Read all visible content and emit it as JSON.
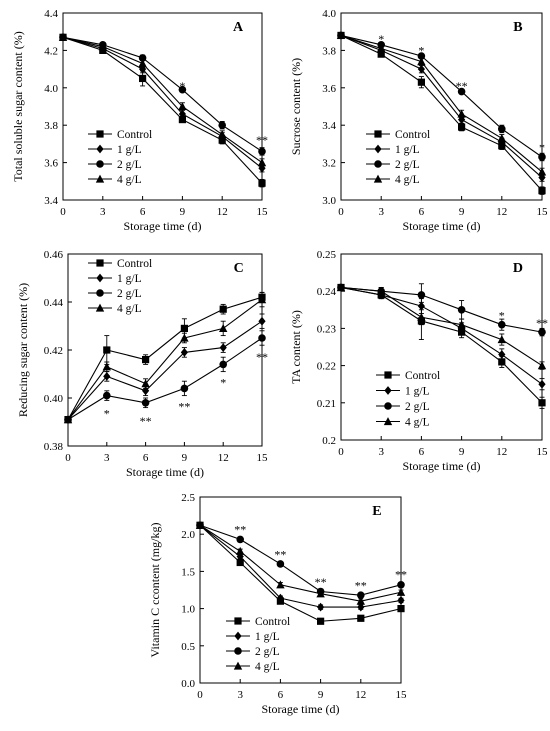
{
  "chart_data": [
    {
      "type": "line",
      "panel": "A",
      "title": "",
      "xlabel": "Storage time (d)",
      "ylabel": "Total soluble sugar content (%)",
      "x": [
        0,
        3,
        6,
        9,
        12,
        15
      ],
      "xlim": [
        0,
        15
      ],
      "xticks": [
        "0",
        "3",
        "6",
        "9",
        "12",
        "15"
      ],
      "ylim": [
        3.4,
        4.4
      ],
      "yticks": [
        3.4,
        3.6,
        3.8,
        4.0,
        4.2,
        4.4
      ],
      "ytick_labels": [
        "3.4",
        "3.6",
        "3.8",
        "4.0",
        "4.2",
        "4.4"
      ],
      "grid": false,
      "legend": "bottom-left",
      "series": [
        {
          "name": "Control",
          "marker": "square",
          "values": [
            4.27,
            4.2,
            4.05,
            3.83,
            3.72,
            3.49
          ],
          "errors": [
            0.01,
            0.01,
            0.04,
            0.015,
            0.02,
            0.02
          ]
        },
        {
          "name": "1 g/L",
          "marker": "diamond",
          "values": [
            4.27,
            4.21,
            4.1,
            3.86,
            3.74,
            3.57
          ],
          "errors": [
            0.01,
            0.01,
            0.02,
            0.02,
            0.02,
            0.02
          ]
        },
        {
          "name": "2 g/L",
          "marker": "circle",
          "values": [
            4.27,
            4.23,
            4.16,
            3.99,
            3.8,
            3.66
          ],
          "errors": [
            0.01,
            0.01,
            0.015,
            0.01,
            0.02,
            0.02
          ]
        },
        {
          "name": "4 g/L",
          "marker": "triangle",
          "values": [
            4.27,
            4.22,
            4.13,
            3.9,
            3.75,
            3.6
          ],
          "errors": [
            0.01,
            0.01,
            0.02,
            0.02,
            0.02,
            0.02
          ]
        }
      ],
      "significance": [
        {
          "x": 9,
          "label": "*",
          "y": 4.01
        },
        {
          "x": 15,
          "label": "**",
          "y": 3.72
        }
      ]
    },
    {
      "type": "line",
      "panel": "B",
      "title": "",
      "xlabel": "Storage time (d)",
      "ylabel": "Sucrose content (%)",
      "x": [
        0,
        3,
        6,
        9,
        12,
        15
      ],
      "xlim": [
        0,
        15
      ],
      "xticks": [
        "0",
        "3",
        "6",
        "9",
        "12",
        "15"
      ],
      "ylim": [
        3.0,
        4.0
      ],
      "yticks": [
        3.0,
        3.2,
        3.4,
        3.6,
        3.8,
        4.0
      ],
      "ytick_labels": [
        "3.0",
        "3.2",
        "3.4",
        "3.6",
        "3.8",
        "4.0"
      ],
      "grid": false,
      "legend": "bottom-left",
      "series": [
        {
          "name": "Control",
          "marker": "square",
          "values": [
            3.88,
            3.78,
            3.63,
            3.39,
            3.29,
            3.05
          ],
          "errors": [
            0.01,
            0.01,
            0.03,
            0.02,
            0.02,
            0.02
          ]
        },
        {
          "name": "1 g/L",
          "marker": "diamond",
          "values": [
            3.88,
            3.8,
            3.7,
            3.43,
            3.31,
            3.12
          ],
          "errors": [
            0.01,
            0.01,
            0.02,
            0.02,
            0.02,
            0.02
          ]
        },
        {
          "name": "2 g/L",
          "marker": "circle",
          "values": [
            3.88,
            3.83,
            3.77,
            3.58,
            3.38,
            3.23
          ],
          "errors": [
            0.01,
            0.01,
            0.01,
            0.01,
            0.02,
            0.02
          ]
        },
        {
          "name": "4 g/L",
          "marker": "triangle",
          "values": [
            3.88,
            3.81,
            3.74,
            3.46,
            3.33,
            3.15
          ],
          "errors": [
            0.01,
            0.01,
            0.02,
            0.02,
            0.02,
            0.02
          ]
        }
      ],
      "significance": [
        {
          "x": 3,
          "label": "*",
          "y": 3.86
        },
        {
          "x": 6,
          "label": "*",
          "y": 3.8
        },
        {
          "x": 9,
          "label": "**",
          "y": 3.61
        },
        {
          "x": 15,
          "label": "*",
          "y": 3.28
        }
      ]
    },
    {
      "type": "line",
      "panel": "C",
      "title": "",
      "xlabel": "Storage time (d)",
      "ylabel": "Reducing sugar content (%)",
      "x": [
        0,
        3,
        6,
        9,
        12,
        15
      ],
      "xlim": [
        0,
        15
      ],
      "xticks": [
        "0",
        "3",
        "6",
        "9",
        "12",
        "15"
      ],
      "ylim": [
        0.38,
        0.46
      ],
      "yticks": [
        0.38,
        0.4,
        0.42,
        0.44,
        0.46
      ],
      "ytick_labels": [
        "0.38",
        "0.40",
        "0.42",
        "0.44",
        "0.46"
      ],
      "grid": false,
      "legend": "top-left",
      "series": [
        {
          "name": "Control",
          "marker": "square",
          "values": [
            0.391,
            0.42,
            0.416,
            0.429,
            0.437,
            0.442
          ],
          "errors": [
            0.001,
            0.006,
            0.002,
            0.004,
            0.002,
            0.002
          ]
        },
        {
          "name": "1 g/L",
          "marker": "diamond",
          "values": [
            0.391,
            0.409,
            0.403,
            0.419,
            0.421,
            0.432
          ],
          "errors": [
            0.001,
            0.002,
            0.002,
            0.002,
            0.002,
            0.003
          ]
        },
        {
          "name": "2 g/L",
          "marker": "circle",
          "values": [
            0.391,
            0.401,
            0.398,
            0.404,
            0.414,
            0.425
          ],
          "errors": [
            0.001,
            0.002,
            0.002,
            0.003,
            0.003,
            0.003
          ]
        },
        {
          "name": "4 g/L",
          "marker": "triangle",
          "values": [
            0.391,
            0.413,
            0.406,
            0.425,
            0.429,
            0.441
          ],
          "errors": [
            0.001,
            0.002,
            0.002,
            0.002,
            0.003,
            0.003
          ]
        }
      ],
      "significance": [
        {
          "x": 3,
          "label": "*",
          "y": 0.3935
        },
        {
          "x": 6,
          "label": "**",
          "y": 0.3905
        },
        {
          "x": 9,
          "label": "**",
          "y": 0.3965
        },
        {
          "x": 12,
          "label": "*",
          "y": 0.4065
        },
        {
          "x": 15,
          "label": "**",
          "y": 0.417
        }
      ]
    },
    {
      "type": "line",
      "panel": "D",
      "title": "",
      "xlabel": "Storage time (d)",
      "ylabel": "TA content (%)",
      "x": [
        0,
        3,
        6,
        9,
        12,
        15
      ],
      "xlim": [
        0,
        15
      ],
      "xticks": [
        "0",
        "3",
        "6",
        "9",
        "12",
        "15"
      ],
      "ylim": [
        0.2,
        0.25
      ],
      "yticks": [
        0.2,
        0.21,
        0.22,
        0.23,
        0.24,
        0.25
      ],
      "ytick_labels": [
        "0.2",
        "0.21",
        "0.22",
        "0.23",
        "0.24",
        "0.25"
      ],
      "grid": false,
      "legend": "bottom-left",
      "series": [
        {
          "name": "Control",
          "marker": "square",
          "values": [
            0.241,
            0.239,
            0.232,
            0.229,
            0.221,
            0.21
          ],
          "errors": [
            0.0005,
            0.001,
            0.005,
            0.0015,
            0.0015,
            0.0015
          ]
        },
        {
          "name": "1 g/L",
          "marker": "diamond",
          "values": [
            0.241,
            0.239,
            0.236,
            0.23,
            0.223,
            0.215
          ],
          "errors": [
            0.0005,
            0.001,
            0.002,
            0.0015,
            0.0015,
            0.0015
          ]
        },
        {
          "name": "2 g/L",
          "marker": "circle",
          "values": [
            0.241,
            0.24,
            0.239,
            0.235,
            0.231,
            0.229
          ],
          "errors": [
            0.0005,
            0.001,
            0.003,
            0.0025,
            0.0015,
            0.001
          ]
        },
        {
          "name": "4 g/L",
          "marker": "triangle",
          "values": [
            0.241,
            0.24,
            0.233,
            0.231,
            0.227,
            0.22
          ],
          "errors": [
            0.0005,
            0.001,
            0.002,
            0.0015,
            0.0015,
            0.001
          ]
        }
      ],
      "significance": [
        {
          "x": 12,
          "label": "*",
          "y": 0.2335
        },
        {
          "x": 15,
          "label": "**",
          "y": 0.2315
        }
      ]
    },
    {
      "type": "line",
      "panel": "E",
      "title": "",
      "xlabel": "Storage time (d)",
      "ylabel": "Vitamin C ccontent (mg/kg)",
      "x": [
        0,
        3,
        6,
        9,
        12,
        15
      ],
      "xlim": [
        0,
        15
      ],
      "xticks": [
        "0",
        "3",
        "6",
        "9",
        "12",
        "15"
      ],
      "ylim": [
        0.0,
        2.5
      ],
      "yticks": [
        0.0,
        0.5,
        1.0,
        1.5,
        2.0,
        2.5
      ],
      "ytick_labels": [
        "0.0",
        "0.5",
        "1.0",
        "1.5",
        "2.0",
        "2.5"
      ],
      "grid": false,
      "legend": "bottom-left",
      "series": [
        {
          "name": "Control",
          "marker": "square",
          "values": [
            2.12,
            1.62,
            1.1,
            0.83,
            0.87,
            1.0
          ],
          "errors": [
            0.02,
            0.03,
            0.03,
            0.03,
            0.03,
            0.03
          ]
        },
        {
          "name": "1 g/L",
          "marker": "diamond",
          "values": [
            2.12,
            1.7,
            1.14,
            1.02,
            1.02,
            1.11
          ],
          "errors": [
            0.02,
            0.03,
            0.03,
            0.03,
            0.03,
            0.03
          ]
        },
        {
          "name": "2 g/L",
          "marker": "circle",
          "values": [
            2.12,
            1.93,
            1.6,
            1.23,
            1.18,
            1.32
          ],
          "errors": [
            0.02,
            0.03,
            0.03,
            0.03,
            0.03,
            0.03
          ]
        },
        {
          "name": "4 g/L",
          "marker": "triangle",
          "values": [
            2.12,
            1.77,
            1.32,
            1.2,
            1.1,
            1.22
          ],
          "errors": [
            0.02,
            0.03,
            0.03,
            0.03,
            0.03,
            0.03
          ]
        }
      ],
      "significance": [
        {
          "x": 3,
          "label": "**",
          "y": 2.06
        },
        {
          "x": 6,
          "label": "**",
          "y": 1.73
        },
        {
          "x": 9,
          "label": "**",
          "y": 1.36
        },
        {
          "x": 12,
          "label": "**",
          "y": 1.31
        },
        {
          "x": 15,
          "label": "**",
          "y": 1.46
        }
      ]
    }
  ]
}
